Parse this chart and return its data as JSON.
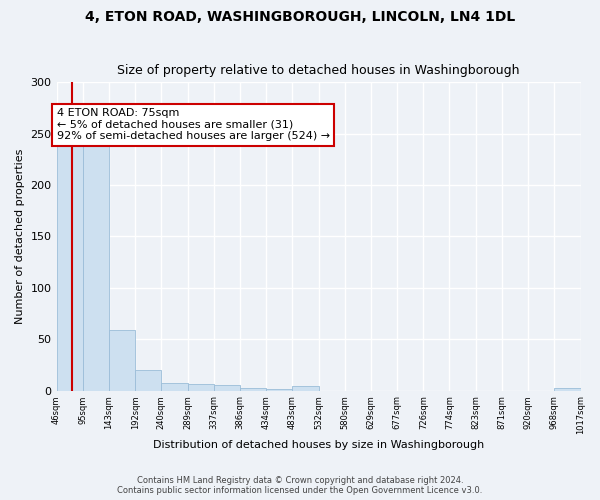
{
  "title": "4, ETON ROAD, WASHINGBOROUGH, LINCOLN, LN4 1DL",
  "subtitle": "Size of property relative to detached houses in Washingborough",
  "xlabel": "Distribution of detached houses by size in Washingborough",
  "ylabel": "Number of detached properties",
  "bar_edges": [
    46,
    95,
    143,
    192,
    240,
    289,
    337,
    386,
    434,
    483,
    532,
    580,
    629,
    677,
    726,
    774,
    823,
    871,
    920,
    968,
    1017
  ],
  "bar_heights": [
    240,
    244,
    59,
    20,
    7,
    6,
    5,
    3,
    2,
    4,
    0,
    0,
    0,
    0,
    0,
    0,
    0,
    0,
    0,
    3
  ],
  "bar_color": "#cde0f0",
  "bar_edgecolor": "#9bbdd8",
  "vline_x": 75,
  "vline_color": "#cc0000",
  "annotation_text": "4 ETON ROAD: 75sqm\n← 5% of detached houses are smaller (31)\n92% of semi-detached houses are larger (524) →",
  "annotation_box_facecolor": "#ffffff",
  "annotation_box_edgecolor": "#cc0000",
  "ylim": [
    0,
    300
  ],
  "yticks": [
    0,
    50,
    100,
    150,
    200,
    250,
    300
  ],
  "tick_labels": [
    "46sqm",
    "95sqm",
    "143sqm",
    "192sqm",
    "240sqm",
    "289sqm",
    "337sqm",
    "386sqm",
    "434sqm",
    "483sqm",
    "532sqm",
    "580sqm",
    "629sqm",
    "677sqm",
    "726sqm",
    "774sqm",
    "823sqm",
    "871sqm",
    "920sqm",
    "968sqm",
    "1017sqm"
  ],
  "footer_line1": "Contains HM Land Registry data © Crown copyright and database right 2024.",
  "footer_line2": "Contains public sector information licensed under the Open Government Licence v3.0.",
  "background_color": "#eef2f7",
  "grid_color": "#ffffff",
  "title_fontsize": 10,
  "subtitle_fontsize": 9,
  "ylabel_fontsize": 8,
  "xlabel_fontsize": 8,
  "annotation_fontsize": 8,
  "tick_fontsize": 6,
  "ytick_fontsize": 8,
  "footer_fontsize": 6
}
